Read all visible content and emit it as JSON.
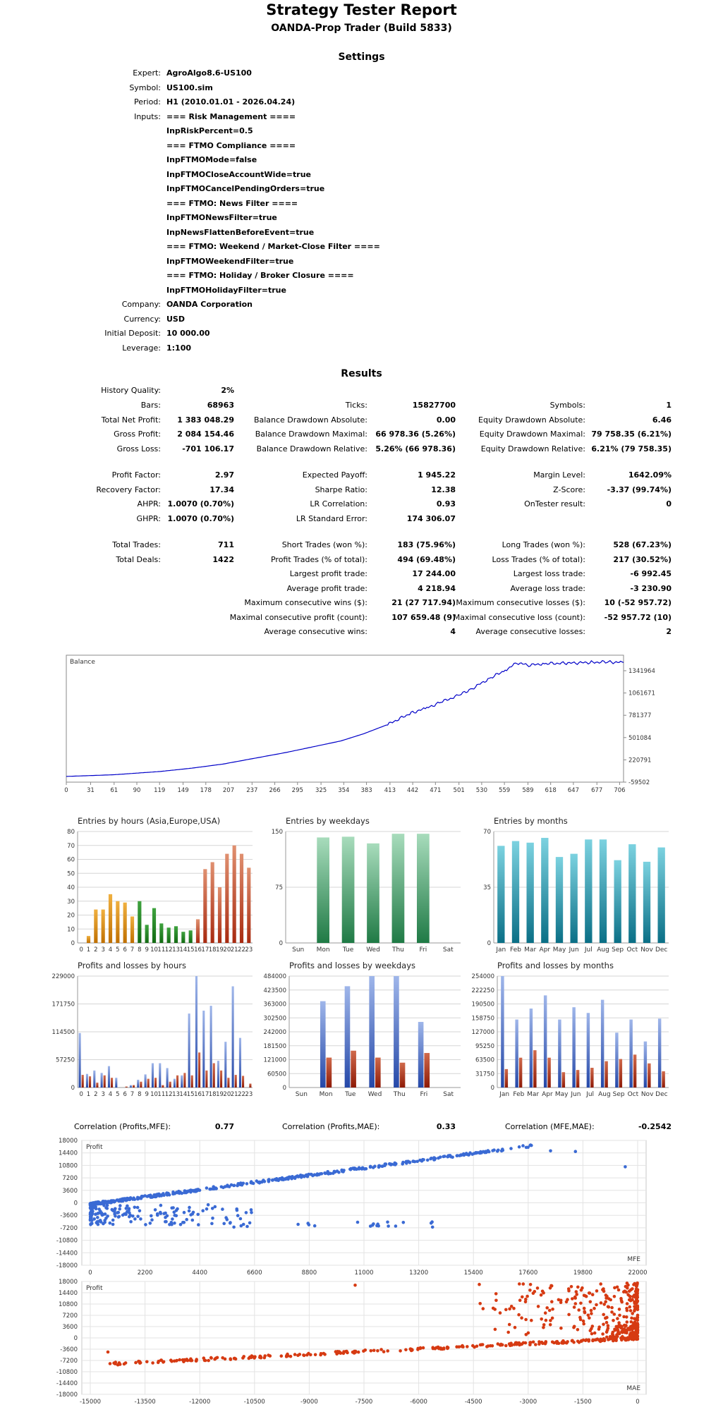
{
  "header": {
    "title": "Strategy Tester Report",
    "subtitle": "OANDA-Prop Trader (Build 5833)"
  },
  "settings": {
    "heading": "Settings",
    "expert": {
      "label": "Expert:",
      "value": "AgroAlgo8.6-US100"
    },
    "symbol": {
      "label": "Symbol:",
      "value": "US100.sim"
    },
    "period": {
      "label": "Period:",
      "value": "H1 (2010.01.01 - 2026.04.24)"
    },
    "inputs_label": "Inputs:",
    "inputs": [
      "=== Risk Management ====",
      "InpRiskPercent=0.5",
      "=== FTMO Compliance ====",
      "InpFTMOMode=false",
      "InpFTMOCloseAccountWide=true",
      "InpFTMOCancelPendingOrders=true",
      "=== FTMO: News Filter ====",
      "InpFTMONewsFilter=true",
      "InpNewsFlattenBeforeEvent=true",
      "=== FTMO: Weekend / Market-Close Filter ====",
      "InpFTMOWeekendFilter=true",
      "=== FTMO: Holiday / Broker Closure ====",
      "InpFTMOHolidayFilter=true"
    ],
    "company": {
      "label": "Company:",
      "value": "OANDA Corporation"
    },
    "currency": {
      "label": "Currency:",
      "value": "USD"
    },
    "deposit": {
      "label": "Initial Deposit:",
      "value": "10 000.00"
    },
    "leverage": {
      "label": "Leverage:",
      "value": "1:100"
    }
  },
  "results": {
    "heading": "Results",
    "history_quality": {
      "label": "History Quality:",
      "value": "2%"
    },
    "col1": [
      {
        "label": "Bars:",
        "value": "68963"
      },
      {
        "label": "Total Net Profit:",
        "value": "1 383 048.29"
      },
      {
        "label": "Gross Profit:",
        "value": "2 084 154.46"
      },
      {
        "label": "Gross Loss:",
        "value": "-701 106.17"
      }
    ],
    "col2": [
      {
        "label": "Ticks:",
        "value": "15827700"
      },
      {
        "label": "Balance Drawdown Absolute:",
        "value": "0.00"
      },
      {
        "label": "Balance Drawdown Maximal:",
        "value": "66 978.36 (5.26%)"
      },
      {
        "label": "Balance Drawdown Relative:",
        "value": "5.26% (66 978.36)"
      }
    ],
    "col3": [
      {
        "label": "Symbols:",
        "value": "1"
      },
      {
        "label": "Equity Drawdown Absolute:",
        "value": "6.46"
      },
      {
        "label": "Equity Drawdown Maximal:",
        "value": "79 758.35 (6.21%)"
      },
      {
        "label": "Equity Drawdown Relative:",
        "value": "6.21% (79 758.35)"
      }
    ],
    "col1b": [
      {
        "label": "Profit Factor:",
        "value": "2.97"
      },
      {
        "label": "Recovery Factor:",
        "value": "17.34"
      },
      {
        "label": "AHPR:",
        "value": "1.0070 (0.70%)"
      },
      {
        "label": "GHPR:",
        "value": "1.0070 (0.70%)"
      }
    ],
    "col2b": [
      {
        "label": "Expected Payoff:",
        "value": "1 945.22"
      },
      {
        "label": "Sharpe Ratio:",
        "value": "12.38"
      },
      {
        "label": "LR Correlation:",
        "value": "0.93"
      },
      {
        "label": "LR Standard Error:",
        "value": "174 306.07"
      }
    ],
    "col3b": [
      {
        "label": "Margin Level:",
        "value": "1642.09%"
      },
      {
        "label": "Z-Score:",
        "value": "-3.37 (99.74%)"
      },
      {
        "label": "OnTester result:",
        "value": "0"
      }
    ],
    "col1c": [
      {
        "label": "Total Trades:",
        "value": "711"
      },
      {
        "label": "Total Deals:",
        "value": "1422"
      }
    ],
    "col2c": [
      {
        "label": "Short Trades (won %):",
        "value": "183 (75.96%)"
      },
      {
        "label": "Profit Trades (% of total):",
        "value": "494 (69.48%)"
      },
      {
        "label": "Largest profit trade:",
        "value": "17 244.00"
      },
      {
        "label": "Average profit trade:",
        "value": "4 218.94"
      },
      {
        "label": "Maximum consecutive wins ($):",
        "value": "21 (27 717.94)"
      },
      {
        "label": "Maximal consecutive profit (count):",
        "value": "107 659.48 (9)"
      },
      {
        "label": "Average consecutive wins:",
        "value": "4"
      }
    ],
    "col3c": [
      {
        "label": "Long Trades (won %):",
        "value": "528 (67.23%)"
      },
      {
        "label": "Loss Trades (% of total):",
        "value": "217 (30.52%)"
      },
      {
        "label": "Largest loss trade:",
        "value": "-6 992.45"
      },
      {
        "label": "Average loss trade:",
        "value": "-3 230.90"
      },
      {
        "label": "Maximum consecutive losses ($):",
        "value": "10 (-52 957.72)"
      },
      {
        "label": "Maximal consecutive loss (count):",
        "value": "-52 957.72 (10)"
      },
      {
        "label": "Average consecutive losses:",
        "value": "2"
      }
    ]
  },
  "chart_data": [
    {
      "id": "balance",
      "type": "line",
      "title": "Balance",
      "x_ticks": [
        "0",
        "31",
        "61",
        "90",
        "119",
        "149",
        "178",
        "207",
        "237",
        "266",
        "295",
        "325",
        "354",
        "383",
        "413",
        "442",
        "471",
        "501",
        "530",
        "559",
        "589",
        "618",
        "647",
        "677",
        "706"
      ],
      "y_ticks": [
        "1341964",
        "1061671",
        "781377",
        "501084",
        "220791",
        "-59502"
      ],
      "xlim": [
        0,
        711
      ],
      "ylim": [
        -59502,
        1482110
      ],
      "series_color": "#0000c8",
      "x": [
        0,
        60,
        120,
        160,
        200,
        240,
        280,
        320,
        350,
        380,
        410,
        440,
        460,
        480,
        500,
        520,
        540,
        560,
        575,
        590,
        610,
        640,
        670,
        690,
        711
      ],
      "y": [
        10000,
        30000,
        70000,
        110000,
        160000,
        230000,
        300000,
        380000,
        440000,
        530000,
        640000,
        780000,
        840000,
        920000,
        990000,
        1090000,
        1200000,
        1300000,
        1390000,
        1360000,
        1380000,
        1385000,
        1395000,
        1400000,
        1393048
      ]
    },
    {
      "id": "entries-hours",
      "type": "bar",
      "title": "Entries by hours (Asia,Europe,USA)",
      "categories": [
        "0",
        "1",
        "2",
        "3",
        "4",
        "5",
        "6",
        "7",
        "8",
        "9",
        "10",
        "11",
        "12",
        "13",
        "14",
        "15",
        "16",
        "17",
        "18",
        "19",
        "20",
        "21",
        "22",
        "23"
      ],
      "values": [
        0,
        5,
        24,
        24,
        35,
        30,
        29,
        19,
        30,
        13,
        25,
        14,
        11,
        12,
        8,
        9,
        17,
        53,
        58,
        40,
        64,
        70,
        64,
        54
      ],
      "ylim": [
        0,
        80
      ],
      "y_ticks": [
        "80",
        "70",
        "60",
        "50",
        "40",
        "30",
        "20",
        "10",
        "0"
      ]
    },
    {
      "id": "entries-weekdays",
      "type": "bar",
      "title": "Entries by weekdays",
      "categories": [
        "Sun",
        "Mon",
        "Tue",
        "Wed",
        "Thu",
        "Fri",
        "Sat"
      ],
      "values": [
        0,
        142,
        143,
        134,
        147,
        147,
        0
      ],
      "ylim": [
        0,
        150
      ],
      "y_ticks": [
        "150",
        "75",
        "0"
      ]
    },
    {
      "id": "entries-months",
      "type": "bar",
      "title": "Entries by months",
      "categories": [
        "Jan",
        "Feb",
        "Mar",
        "Apr",
        "May",
        "Jun",
        "Jul",
        "Aug",
        "Sep",
        "Oct",
        "Nov",
        "Dec"
      ],
      "values": [
        61,
        64,
        63,
        66,
        54,
        56,
        65,
        65,
        52,
        62,
        51,
        60
      ],
      "ylim": [
        0,
        70
      ],
      "y_ticks": [
        "70",
        "35",
        "0"
      ]
    },
    {
      "id": "pl-hours",
      "type": "bar",
      "title": "Profits and losses by hours",
      "categories": [
        "0",
        "1",
        "2",
        "3",
        "4",
        "5",
        "6",
        "7",
        "8",
        "9",
        "10",
        "11",
        "12",
        "13",
        "14",
        "15",
        "16",
        "17",
        "18",
        "19",
        "20",
        "21",
        "22",
        "23"
      ],
      "series": [
        {
          "name": "Profit",
          "values": [
            112000,
            28000,
            35000,
            30000,
            44000,
            20000,
            0,
            5000,
            16000,
            27000,
            50000,
            50000,
            40000,
            18000,
            25000,
            152000,
            229000,
            158000,
            168000,
            55000,
            94000,
            208000,
            102000,
            0
          ]
        },
        {
          "name": "Loss",
          "values": [
            26000,
            23000,
            10000,
            25000,
            20000,
            0,
            2000,
            5000,
            12000,
            18000,
            20000,
            5000,
            12000,
            25000,
            30000,
            25000,
            72000,
            35000,
            50000,
            35000,
            20000,
            26000,
            24000,
            8000
          ]
        }
      ],
      "ylim": [
        0,
        229000
      ],
      "y_ticks": [
        "229000",
        "171750",
        "114500",
        "57250",
        "0"
      ]
    },
    {
      "id": "pl-weekdays",
      "type": "bar",
      "title": "Profits and losses by weekdays",
      "categories": [
        "Sun",
        "Mon",
        "Tue",
        "Wed",
        "Thu",
        "Fri",
        "Sat"
      ],
      "series": [
        {
          "name": "Profit",
          "values": [
            0,
            375000,
            440000,
            484000,
            484000,
            285000,
            0
          ]
        },
        {
          "name": "Loss",
          "values": [
            0,
            130000,
            160000,
            130000,
            108000,
            150000,
            0
          ]
        }
      ],
      "ylim": [
        0,
        484000
      ],
      "y_ticks": [
        "484000",
        "423500",
        "363000",
        "302500",
        "242000",
        "181500",
        "121000",
        "60500",
        "0"
      ]
    },
    {
      "id": "pl-months",
      "type": "bar",
      "title": "Profits and losses by months",
      "categories": [
        "Jan",
        "Feb",
        "Mar",
        "Apr",
        "May",
        "Jun",
        "Jul",
        "Aug",
        "Sep",
        "Oct",
        "Nov",
        "Dec"
      ],
      "series": [
        {
          "name": "Profit",
          "values": [
            254000,
            155000,
            180000,
            210000,
            155000,
            183000,
            170000,
            200000,
            125000,
            155000,
            105000,
            157000
          ]
        },
        {
          "name": "Loss",
          "values": [
            42000,
            68000,
            85000,
            68000,
            35000,
            40000,
            45000,
            60000,
            65000,
            75000,
            55000,
            37000
          ]
        }
      ],
      "ylim": [
        0,
        254000
      ],
      "y_ticks": [
        "254000",
        "222250",
        "190500",
        "158750",
        "127000",
        "95250",
        "63500",
        "31750",
        "0"
      ]
    },
    {
      "id": "scatter-mfe",
      "type": "scatter",
      "title": "Profit",
      "xlabel": "MFE",
      "color": "#3a6ad4",
      "xlim": [
        0,
        22000
      ],
      "ylim": [
        -18000,
        18000
      ],
      "x_ticks": [
        "0",
        "2200",
        "4400",
        "6600",
        "8800",
        "11000",
        "13200",
        "15400",
        "17600",
        "19800",
        "22000"
      ],
      "y_ticks": [
        "18000",
        "14400",
        "10800",
        "7200",
        "3600",
        "0",
        "-3600",
        "-7200",
        "-10800",
        "-14400",
        "-18000"
      ]
    },
    {
      "id": "scatter-mae",
      "type": "scatter",
      "title": "Profit",
      "xlabel": "MAE",
      "color": "#d63a12",
      "xlim": [
        -15500,
        0
      ],
      "ylim": [
        -18000,
        18000
      ],
      "x_ticks": [
        "-15000",
        "-13500",
        "-12000",
        "-10500",
        "-9000",
        "-7500",
        "-6000",
        "-4500",
        "-3000",
        "-1500",
        "0"
      ],
      "y_ticks": [
        "18000",
        "14400",
        "10800",
        "7200",
        "3600",
        "0",
        "-3600",
        "-7200",
        "-10800",
        "-14400",
        "-18000"
      ]
    }
  ],
  "correlations": [
    {
      "label": "Correlation (Profits,MFE):",
      "value": "0.77"
    },
    {
      "label": "Correlation (Profits,MAE):",
      "value": "0.33"
    },
    {
      "label": "Correlation (MFE,MAE):",
      "value": "-0.2542"
    }
  ]
}
